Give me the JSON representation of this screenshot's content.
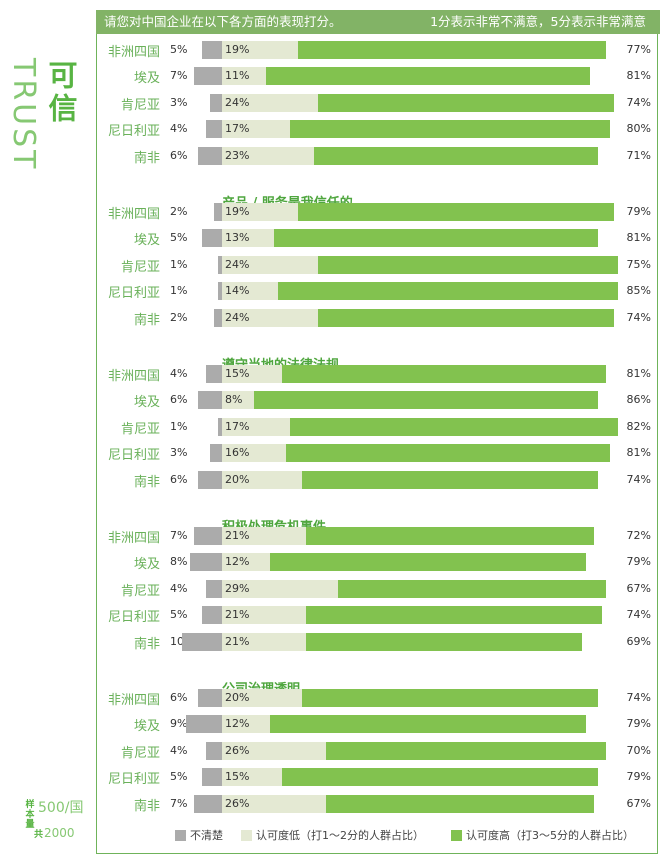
{
  "header": {
    "question": "请您对中国企业在以下各方面的表现打分。",
    "note": "1分表示非常不满意，5分表示非常满意"
  },
  "side": {
    "title": "可信",
    "word": "TRUST"
  },
  "sample": {
    "label": "样本量",
    "main": "500/国",
    "sub_prefix": "共",
    "sub": "2000"
  },
  "legend": {
    "unsure": "不清楚",
    "low": "认可度低（打1～2分的人群占比）",
    "high": "认可度高（打3～5分的人群占比）"
  },
  "colors": {
    "accent": "#82b366",
    "unsure": "#ababab",
    "low": "#e4e9d3",
    "high": "#82c24f",
    "section_title": "#4fa63e",
    "country": "#6ab15a"
  },
  "chart_data": {
    "type": "bar",
    "stacked": true,
    "orientation": "horizontal",
    "series_names": [
      "不清楚",
      "认可度低（打1～2分的人群占比）",
      "认可度高（打3～5分的人群占比）"
    ],
    "sections": [
      {
        "title": "",
        "rows": [
          {
            "country": "非洲四国",
            "unsure": 5,
            "low": 19,
            "high": 77
          },
          {
            "country": "埃及",
            "unsure": 7,
            "low": 11,
            "high": 81
          },
          {
            "country": "肯尼亚",
            "unsure": 3,
            "low": 24,
            "high": 74
          },
          {
            "country": "尼日利亚",
            "unsure": 4,
            "low": 17,
            "high": 80
          },
          {
            "country": "南非",
            "unsure": 6,
            "low": 23,
            "high": 71
          }
        ]
      },
      {
        "title": "产品 / 服务是我信任的",
        "rows": [
          {
            "country": "非洲四国",
            "unsure": 2,
            "low": 19,
            "high": 79
          },
          {
            "country": "埃及",
            "unsure": 5,
            "low": 13,
            "high": 81
          },
          {
            "country": "肯尼亚",
            "unsure": 1,
            "low": 24,
            "high": 75
          },
          {
            "country": "尼日利亚",
            "unsure": 1,
            "low": 14,
            "high": 85
          },
          {
            "country": "南非",
            "unsure": 2,
            "low": 24,
            "high": 74
          }
        ]
      },
      {
        "title": "遵守当地的法律法规",
        "rows": [
          {
            "country": "非洲四国",
            "unsure": 4,
            "low": 15,
            "high": 81
          },
          {
            "country": "埃及",
            "unsure": 6,
            "low": 8,
            "high": 86
          },
          {
            "country": "肯尼亚",
            "unsure": 1,
            "low": 17,
            "high": 82
          },
          {
            "country": "尼日利亚",
            "unsure": 3,
            "low": 16,
            "high": 81
          },
          {
            "country": "南非",
            "unsure": 6,
            "low": 20,
            "high": 74
          }
        ]
      },
      {
        "title": "积极处理危机事件",
        "rows": [
          {
            "country": "非洲四国",
            "unsure": 7,
            "low": 21,
            "high": 72
          },
          {
            "country": "埃及",
            "unsure": 8,
            "low": 12,
            "high": 79
          },
          {
            "country": "肯尼亚",
            "unsure": 4,
            "low": 29,
            "high": 67
          },
          {
            "country": "尼日利亚",
            "unsure": 5,
            "low": 21,
            "high": 74
          },
          {
            "country": "南非",
            "unsure": 10,
            "low": 21,
            "high": 69
          }
        ]
      },
      {
        "title": "公司治理透明",
        "rows": [
          {
            "country": "非洲四国",
            "unsure": 6,
            "low": 20,
            "high": 74
          },
          {
            "country": "埃及",
            "unsure": 9,
            "low": 12,
            "high": 79
          },
          {
            "country": "肯尼亚",
            "unsure": 4,
            "low": 26,
            "high": 70
          },
          {
            "country": "尼日利亚",
            "unsure": 5,
            "low": 15,
            "high": 79
          },
          {
            "country": "南非",
            "unsure": 7,
            "low": 26,
            "high": 67
          }
        ]
      }
    ]
  }
}
